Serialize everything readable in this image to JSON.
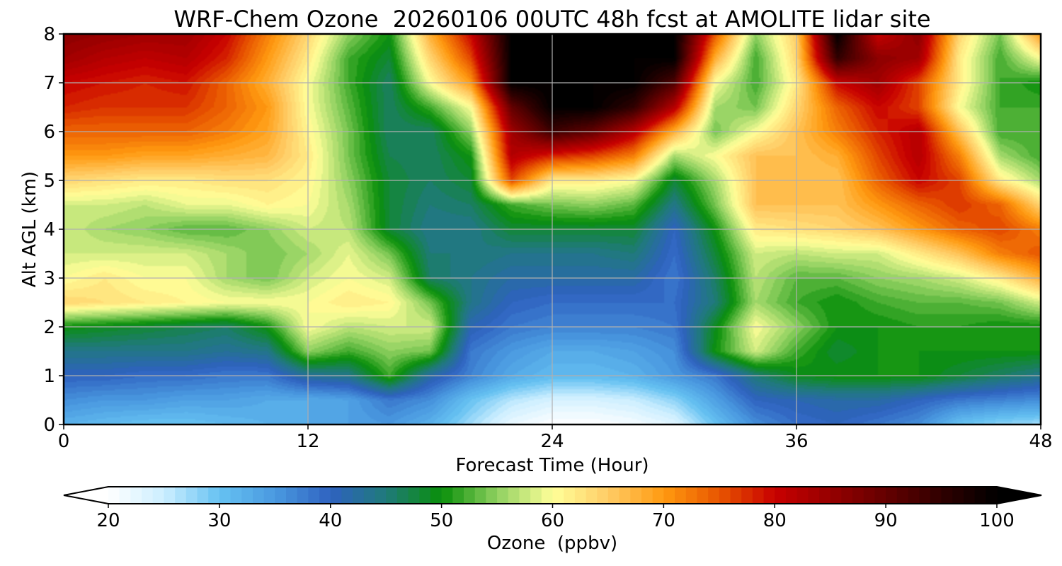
{
  "chart_data": {
    "type": "heatmap",
    "title": "WRF-Chem Ozone  20260106 00UTC 48h fcst at AMOLITE lidar site",
    "xlabel": "Forecast Time (Hour)",
    "ylabel": "Alt AGL (km)",
    "xlim": [
      0,
      48
    ],
    "ylim": [
      0,
      8
    ],
    "xticks": [
      "0",
      "12",
      "24",
      "36",
      "48"
    ],
    "yticks": [
      "0",
      "1",
      "2",
      "3",
      "4",
      "5",
      "6",
      "7",
      "8"
    ],
    "grid": true,
    "colorbar": {
      "label": "Ozone  (ppbv)",
      "range": [
        20,
        100
      ],
      "ticks": [
        "20",
        "30",
        "40",
        "50",
        "60",
        "70",
        "80",
        "90",
        "100"
      ],
      "extend": "both",
      "stops": [
        {
          "v": 20,
          "color": "#ffffff"
        },
        {
          "v": 25,
          "color": "#cceeff"
        },
        {
          "v": 30,
          "color": "#66c2f2"
        },
        {
          "v": 35,
          "color": "#4a99e0"
        },
        {
          "v": 40,
          "color": "#2f62c0"
        },
        {
          "v": 45,
          "color": "#1f7a7a"
        },
        {
          "v": 50,
          "color": "#0a8f0a"
        },
        {
          "v": 55,
          "color": "#8fd060"
        },
        {
          "v": 60,
          "color": "#ffff99"
        },
        {
          "v": 65,
          "color": "#ffcc66"
        },
        {
          "v": 70,
          "color": "#ff9a10"
        },
        {
          "v": 75,
          "color": "#e85500"
        },
        {
          "v": 80,
          "color": "#c80000"
        },
        {
          "v": 85,
          "color": "#960000"
        },
        {
          "v": 90,
          "color": "#640000"
        },
        {
          "v": 95,
          "color": "#300000"
        },
        {
          "v": 100,
          "color": "#000000"
        }
      ]
    },
    "x": [
      0,
      2,
      4,
      6,
      8,
      10,
      12,
      14,
      16,
      18,
      20,
      22,
      24,
      26,
      28,
      30,
      32,
      34,
      36,
      38,
      40,
      42,
      44,
      46,
      48
    ],
    "y": [
      0,
      0.5,
      1,
      1.5,
      2,
      2.5,
      3,
      3.5,
      4,
      4.5,
      5,
      5.5,
      6,
      6.5,
      7,
      7.5,
      8
    ],
    "z": [
      [
        32,
        31,
        30,
        30,
        31,
        32,
        33,
        34,
        35,
        32,
        27,
        22,
        20,
        20,
        21,
        23,
        30,
        36,
        39,
        40,
        38,
        36,
        30,
        28,
        27
      ],
      [
        36,
        35,
        35,
        34,
        34,
        33,
        33,
        34,
        38,
        36,
        30,
        26,
        24,
        24,
        25,
        28,
        34,
        40,
        41,
        42,
        42,
        40,
        38,
        37,
        36
      ],
      [
        40,
        40,
        39,
        39,
        38,
        38,
        43,
        44,
        52,
        42,
        37,
        33,
        31,
        31,
        32,
        35,
        38,
        45,
        49,
        50,
        50,
        50,
        48,
        46,
        44
      ],
      [
        44,
        44,
        44,
        44,
        43,
        44,
        55,
        52,
        55,
        54,
        38,
        35,
        33,
        33,
        34,
        36,
        50,
        58,
        52,
        48,
        50,
        50,
        50,
        50,
        50
      ],
      [
        50,
        49,
        48,
        47,
        46,
        50,
        60,
        57,
        58,
        58,
        41,
        38,
        37,
        37,
        37,
        38,
        49,
        60,
        55,
        50,
        50,
        51,
        51,
        50,
        50
      ],
      [
        64,
        63,
        62,
        61,
        60,
        60,
        60,
        62,
        61,
        54,
        44,
        40,
        39,
        39,
        39,
        39,
        45,
        56,
        52,
        50,
        52,
        53,
        53,
        54,
        58
      ],
      [
        60,
        62,
        60,
        60,
        56,
        54,
        58,
        60,
        58,
        46,
        44,
        42,
        42,
        42,
        42,
        38,
        46,
        57,
        53,
        53,
        55,
        56,
        58,
        62,
        68
      ],
      [
        58,
        58,
        58,
        58,
        56,
        54,
        56,
        59,
        54,
        45,
        45,
        44,
        44,
        44,
        45,
        39,
        48,
        58,
        57,
        58,
        58,
        62,
        66,
        72,
        75
      ],
      [
        58,
        56,
        55,
        53,
        53,
        55,
        58,
        57,
        48,
        44,
        44,
        48,
        48,
        48,
        48,
        40,
        50,
        62,
        63,
        64,
        66,
        70,
        74,
        76,
        72
      ],
      [
        58,
        58,
        57,
        59,
        59,
        61,
        60,
        56,
        48,
        45,
        46,
        52,
        54,
        55,
        53,
        44,
        54,
        66,
        66,
        66,
        70,
        74,
        77,
        74,
        64
      ],
      [
        64,
        63,
        62,
        62,
        63,
        63,
        61,
        55,
        48,
        46,
        48,
        76,
        62,
        62,
        60,
        48,
        56,
        66,
        66,
        66,
        74,
        80,
        76,
        62,
        56
      ],
      [
        70,
        70,
        69,
        69,
        68,
        67,
        62,
        54,
        47,
        46,
        50,
        82,
        78,
        76,
        72,
        56,
        60,
        66,
        66,
        68,
        76,
        82,
        72,
        56,
        52
      ],
      [
        74,
        74,
        74,
        74,
        72,
        69,
        61,
        54,
        46,
        46,
        55,
        84,
        94,
        90,
        82,
        68,
        54,
        60,
        66,
        72,
        78,
        82,
        66,
        52,
        52
      ],
      [
        78,
        77,
        77,
        77,
        74,
        70,
        60,
        53,
        46,
        52,
        60,
        90,
        100,
        100,
        95,
        82,
        56,
        54,
        64,
        74,
        80,
        76,
        60,
        52,
        52
      ],
      [
        80,
        79,
        78,
        79,
        74,
        68,
        60,
        52,
        46,
        60,
        70,
        100,
        100,
        100,
        100,
        92,
        60,
        52,
        62,
        80,
        84,
        76,
        62,
        52,
        50
      ],
      [
        84,
        82,
        81,
        82,
        78,
        70,
        62,
        52,
        48,
        64,
        76,
        100,
        100,
        100,
        100,
        100,
        68,
        52,
        64,
        95,
        86,
        84,
        62,
        52,
        60
      ],
      [
        86,
        85,
        84,
        84,
        80,
        72,
        64,
        55,
        50,
        68,
        80,
        100,
        100,
        100,
        100,
        100,
        75,
        55,
        65,
        100,
        80,
        86,
        64,
        54,
        70
      ]
    ]
  }
}
